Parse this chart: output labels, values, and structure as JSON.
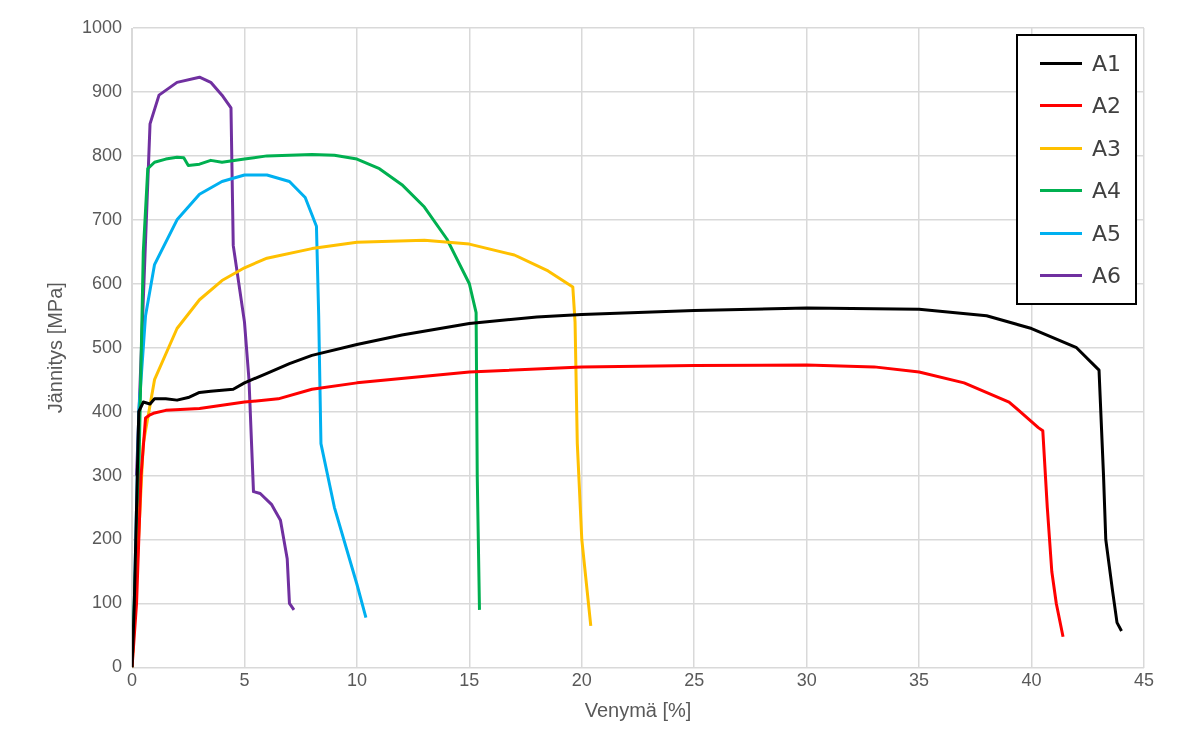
{
  "chart_data": {
    "type": "line",
    "xlabel": "Venymä [%]",
    "ylabel": "Jännitys [MPa]",
    "xlim": [
      0,
      45
    ],
    "xticks": [
      0,
      5,
      10,
      15,
      20,
      25,
      30,
      35,
      40,
      45
    ],
    "ylim": [
      0,
      1000
    ],
    "yticks": [
      0,
      100,
      200,
      300,
      400,
      500,
      600,
      700,
      800,
      900,
      1000
    ],
    "grid": true,
    "legend": "top right",
    "marker": "none",
    "line_style": "solid",
    "series": [
      {
        "name": "A1",
        "color": "#000000",
        "x": [
          0,
          0.1,
          0.3,
          0.5,
          0.8,
          1,
          1.5,
          2,
          2.5,
          3,
          3.5,
          4.5,
          5,
          6,
          7,
          8,
          10,
          12,
          15,
          18,
          20,
          25,
          30,
          35,
          38,
          40,
          42,
          43,
          43.2,
          43.3,
          43.6,
          43.8,
          44
        ],
        "values": [
          0,
          100,
          400,
          415,
          412,
          420,
          420,
          418,
          422,
          430,
          432,
          435,
          445,
          460,
          475,
          488,
          505,
          520,
          538,
          548,
          552,
          558,
          562,
          560,
          550,
          530,
          500,
          465,
          300,
          200,
          120,
          70,
          57
        ]
      },
      {
        "name": "A2",
        "color": "#ff0000",
        "x": [
          0,
          0.2,
          0.4,
          0.6,
          0.8,
          1,
          1.5,
          3,
          5,
          6.5,
          8,
          10,
          15,
          20,
          25,
          30,
          33,
          35,
          37,
          39,
          40.3,
          40.5,
          40.7,
          40.9,
          41.1,
          41.4
        ],
        "values": [
          0,
          100,
          300,
          390,
          395,
          398,
          402,
          405,
          415,
          420,
          435,
          445,
          462,
          470,
          472,
          473,
          470,
          462,
          445,
          415,
          375,
          370,
          250,
          150,
          100,
          48
        ]
      },
      {
        "name": "A3",
        "color": "#ffc000",
        "x": [
          0,
          0.5,
          1,
          2,
          3,
          4,
          5,
          6,
          8,
          10,
          13,
          15,
          17,
          18.5,
          19.6,
          19.7,
          19.8,
          20,
          20.4
        ],
        "values": [
          0,
          350,
          450,
          530,
          575,
          605,
          625,
          640,
          655,
          665,
          668,
          662,
          645,
          620,
          595,
          540,
          350,
          200,
          65
        ]
      },
      {
        "name": "A4",
        "color": "#00b050",
        "x": [
          0,
          0.3,
          0.5,
          0.7,
          1,
          1.5,
          2,
          2.3,
          2.5,
          3,
          3.5,
          4,
          5,
          6,
          8,
          9,
          10,
          11,
          12,
          13,
          14,
          15,
          15.3,
          15.35,
          15.45
        ],
        "values": [
          0,
          300,
          650,
          780,
          790,
          795,
          798,
          797,
          785,
          787,
          793,
          790,
          795,
          800,
          802,
          801,
          795,
          780,
          755,
          720,
          670,
          600,
          555,
          300,
          90
        ]
      },
      {
        "name": "A5",
        "color": "#00b0f0",
        "x": [
          0,
          0.1,
          0.3,
          0.6,
          1,
          2,
          3,
          4,
          5,
          6,
          7,
          7.7,
          8.2,
          8.3,
          8.4,
          9,
          10,
          10.4
        ],
        "values": [
          0,
          100,
          400,
          550,
          630,
          700,
          740,
          760,
          770,
          770,
          760,
          735,
          690,
          550,
          350,
          250,
          130,
          78
        ]
      },
      {
        "name": "A6",
        "color": "#7030a0",
        "x": [
          0.2,
          0.8,
          1.2,
          2,
          3,
          3.5,
          4,
          4.4,
          4.5,
          5,
          5.2,
          5.4,
          5.7,
          6.2,
          6.6,
          6.9,
          7,
          7.2
        ],
        "values": [
          300,
          850,
          895,
          915,
          923,
          915,
          895,
          875,
          660,
          540,
          450,
          275,
          272,
          255,
          230,
          170,
          100,
          90
        ]
      }
    ]
  }
}
